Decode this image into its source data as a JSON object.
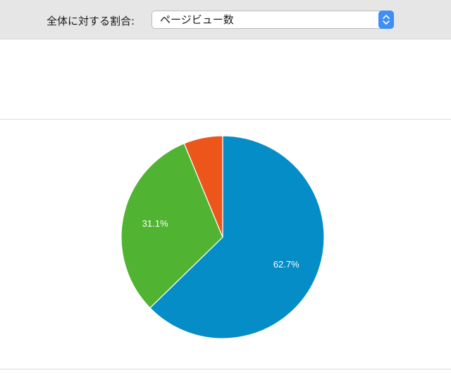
{
  "toolbar": {
    "label": "全体に対する割合:",
    "select_value": "ページビュー数"
  },
  "chart_data": {
    "type": "pie",
    "slices": [
      {
        "value": 62.7,
        "label": "62.7%",
        "color": "#058dc7"
      },
      {
        "value": 31.1,
        "label": "31.1%",
        "color": "#50b432"
      },
      {
        "value": 6.2,
        "label": "",
        "color": "#ed561b"
      }
    ]
  }
}
